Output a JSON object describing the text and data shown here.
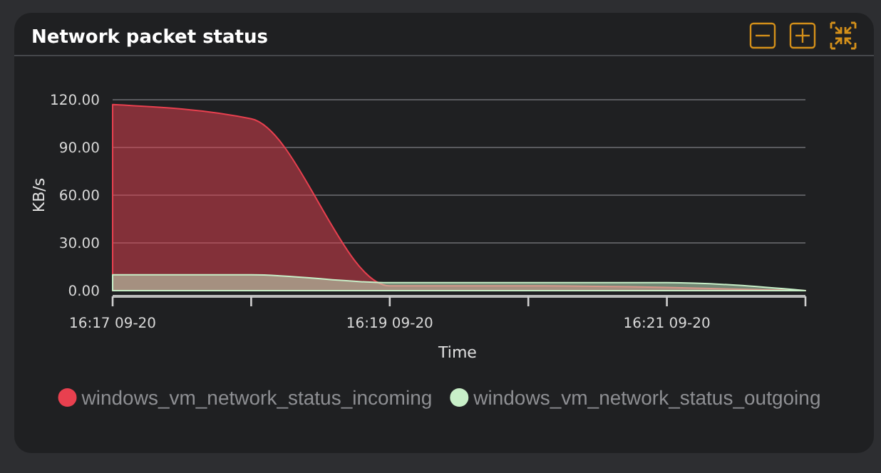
{
  "chart_data": {
    "type": "area",
    "title": "Network packet status",
    "xlabel": "Time",
    "ylabel": "KB/s",
    "categories": [
      "16:17 09-20",
      null,
      "16:19 09-20",
      null,
      "16:21 09-20",
      null
    ],
    "series": [
      {
        "name": "windows_vm_network_status_incoming",
        "color": "#e8404f",
        "values": [
          117,
          108,
          3,
          3,
          2,
          0
        ]
      },
      {
        "name": "windows_vm_network_status_outgoing",
        "color": "#c8efc8",
        "values": [
          10,
          10,
          5,
          5,
          5,
          0
        ]
      }
    ],
    "ylim": [
      0,
      120
    ],
    "yticks": [
      {
        "value": 0,
        "label": "0.00"
      },
      {
        "value": 30,
        "label": "30.00"
      },
      {
        "value": 60,
        "label": "60.00"
      },
      {
        "value": 90,
        "label": "90.00"
      },
      {
        "value": 120,
        "label": "120.00"
      }
    ],
    "grid": "y",
    "legend": "bottom",
    "marker": "none"
  }
}
